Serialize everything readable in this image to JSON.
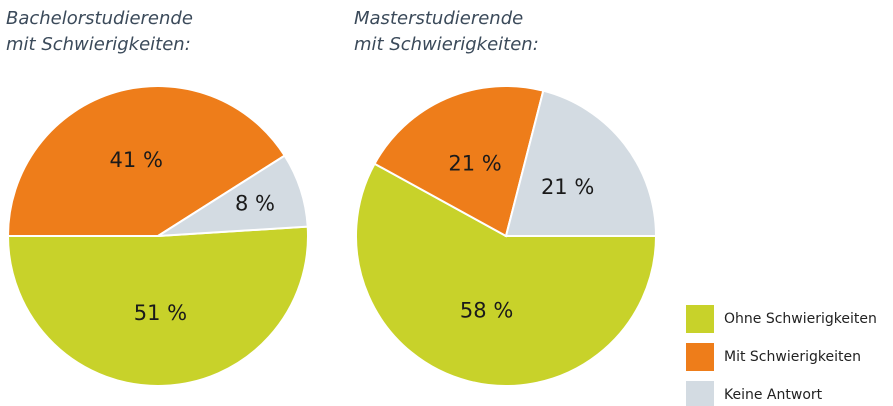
{
  "legend": {
    "labels": [
      "Ohne Schwierigkeiten",
      "Mit Schwierigkeiten",
      "Keine Antwort"
    ],
    "colors": [
      "#c8d22a",
      "#ee7d1a",
      "#d3dbe2"
    ]
  },
  "chart_data": [
    {
      "type": "pie",
      "title": [
        "Bachelorstudierende",
        "mit Schwierigkeiten:"
      ],
      "values": [
        51,
        41,
        8
      ],
      "value_labels": [
        "51 %",
        "41 %",
        "8 %"
      ]
    },
    {
      "type": "pie",
      "title": [
        "Masterstudierende",
        "mit Schwierigkeiten:"
      ],
      "values": [
        58,
        21,
        21
      ],
      "value_labels": [
        "58 %",
        "21 %",
        "21 %"
      ]
    }
  ]
}
